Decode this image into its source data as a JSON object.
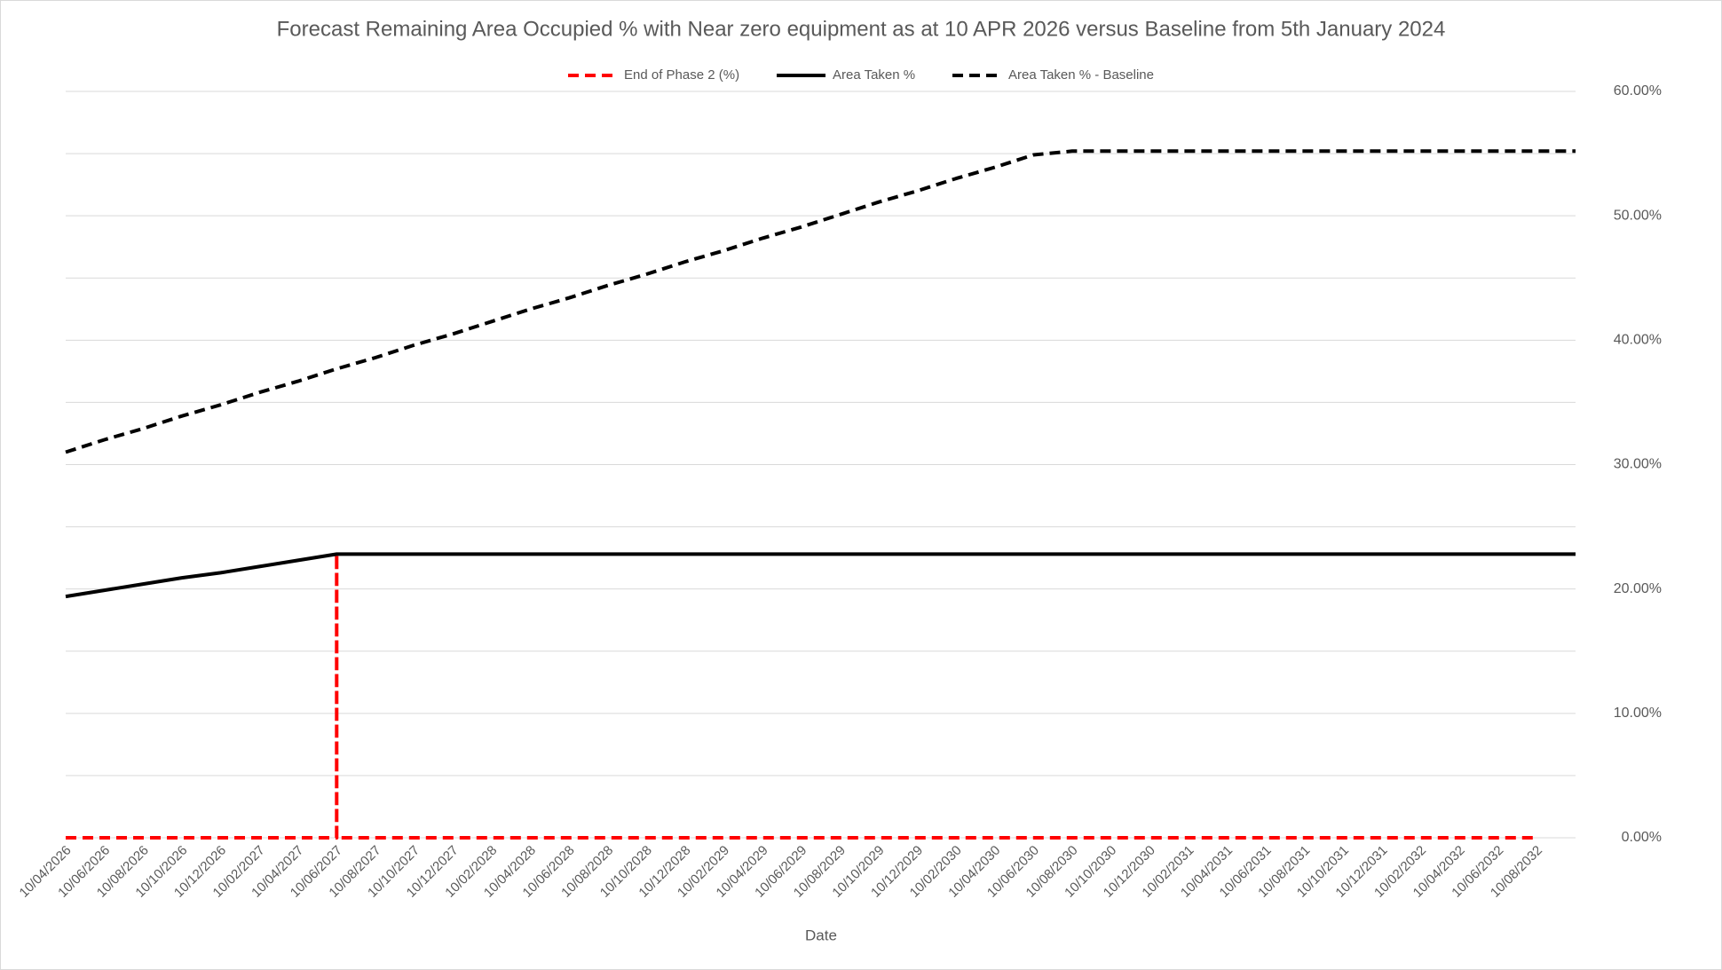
{
  "chart_data": {
    "type": "line",
    "title": "Forecast Remaining Area Occupied % with Near zero equipment as at 10 APR 2026 versus Baseline from 5th January 2024",
    "x_label": "Date",
    "categories": [
      "10/04/2026",
      "10/06/2026",
      "10/08/2026",
      "10/10/2026",
      "10/12/2026",
      "10/02/2027",
      "10/04/2027",
      "10/06/2027",
      "10/08/2027",
      "10/10/2027",
      "10/12/2027",
      "10/02/2028",
      "10/04/2028",
      "10/06/2028",
      "10/08/2028",
      "10/10/2028",
      "10/12/2028",
      "10/02/2029",
      "10/04/2029",
      "10/06/2029",
      "10/08/2029",
      "10/10/2029",
      "10/12/2029",
      "10/02/2030",
      "10/04/2030",
      "10/06/2030",
      "10/08/2030",
      "10/10/2030",
      "10/12/2030",
      "10/02/2031",
      "10/04/2031",
      "10/06/2031",
      "10/08/2031",
      "10/10/2031",
      "10/12/2031",
      "10/02/2032",
      "10/04/2032",
      "10/06/2032",
      "10/08/2032",
      null
    ],
    "series": [
      {
        "name": "End of Phase 2 (%)",
        "color": "#ff0000",
        "dash": true,
        "x": [
          "10/04/2026",
          "10/06/2027",
          "10/06/2027",
          "10/06/2027",
          "10/08/2032"
        ],
        "values": [
          0,
          0,
          22.8,
          0,
          0
        ]
      },
      {
        "name": "Area Taken %",
        "color": "#000000",
        "dash": false,
        "values": [
          19.4,
          19.9,
          20.4,
          20.9,
          21.3,
          21.8,
          22.3,
          22.8,
          22.8,
          22.8,
          22.8,
          22.8,
          22.8,
          22.8,
          22.8,
          22.8,
          22.8,
          22.8,
          22.8,
          22.8,
          22.8,
          22.8,
          22.8,
          22.8,
          22.8,
          22.8,
          22.8,
          22.8,
          22.8,
          22.8,
          22.8,
          22.8,
          22.8,
          22.8,
          22.8,
          22.8,
          22.8,
          22.8,
          22.8,
          22.8
        ]
      },
      {
        "name": "Area Taken % - Baseline",
        "color": "#000000",
        "dash": true,
        "values": [
          31.0,
          32.0,
          32.9,
          33.9,
          34.8,
          35.8,
          36.7,
          37.7,
          38.6,
          39.6,
          40.5,
          41.5,
          42.5,
          43.4,
          44.4,
          45.3,
          46.3,
          47.2,
          48.2,
          49.1,
          50.1,
          51.1,
          52.0,
          53.0,
          53.9,
          54.9,
          55.2,
          55.2,
          55.2,
          55.2,
          55.2,
          55.2,
          55.2,
          55.2,
          55.2,
          55.2,
          55.2,
          55.2,
          55.2,
          55.2
        ]
      }
    ],
    "ylim": [
      0,
      60
    ],
    "yticks": [
      {
        "value": 0,
        "label": "0.00%"
      },
      {
        "value": 10,
        "label": "10.00%"
      },
      {
        "value": 20,
        "label": "20.00%"
      },
      {
        "value": 30,
        "label": "30.00%"
      },
      {
        "value": 40,
        "label": "40.00%"
      },
      {
        "value": 50,
        "label": "50.00%"
      },
      {
        "value": 60,
        "label": "60.00%"
      }
    ],
    "minor_grid": [
      5,
      15,
      25,
      35,
      45,
      55
    ],
    "grid": true,
    "legend": "top"
  }
}
